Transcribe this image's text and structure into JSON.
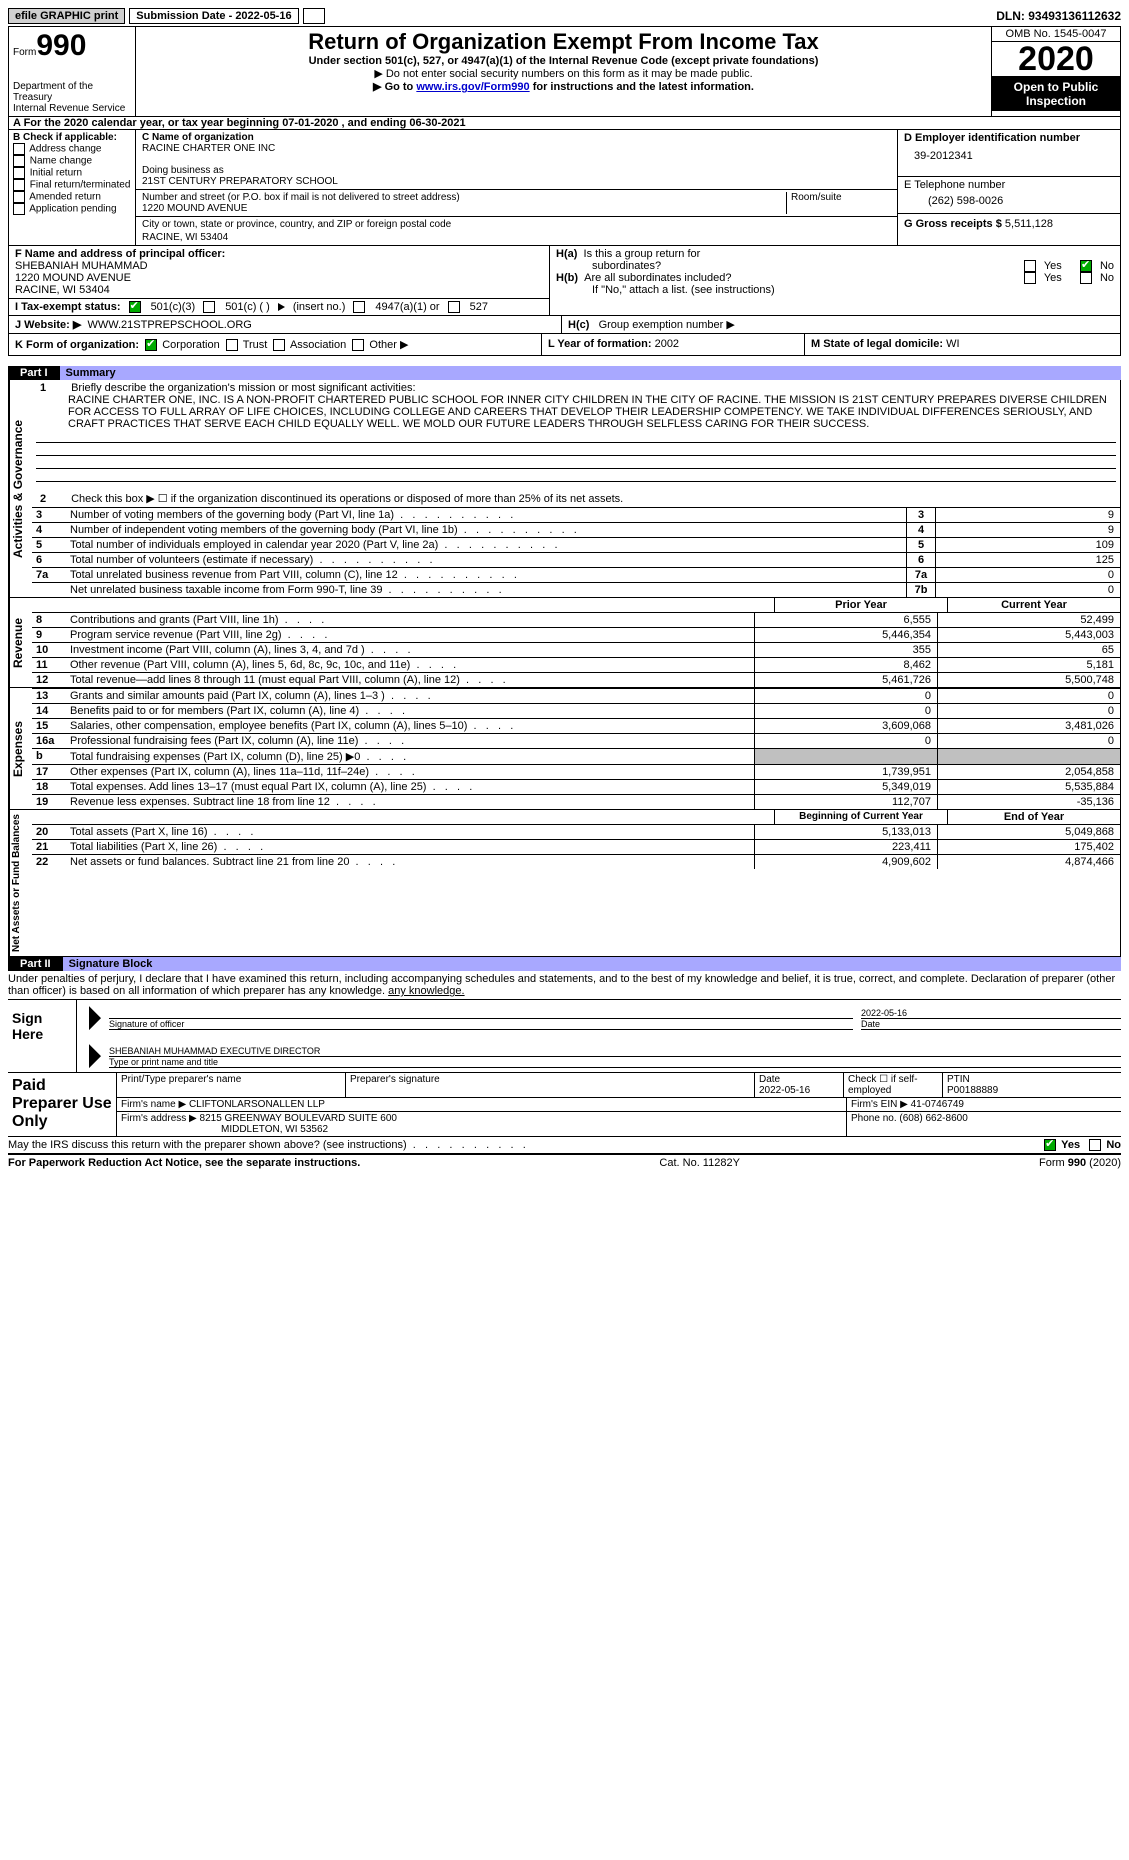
{
  "topbar": {
    "efile": "efile GRAPHIC print",
    "submission": "Submission Date - 2022-05-16",
    "dln": "DLN: 93493136112632"
  },
  "header": {
    "form_word": "Form",
    "form_num": "990",
    "dept": "Department of the Treasury\nInternal Revenue Service",
    "title": "Return of Organization Exempt From Income Tax",
    "sub1": "Under section 501(c), 527, or 4947(a)(1) of the Internal Revenue Code (except private foundations)",
    "sub2": "▶ Do not enter social security numbers on this form as it may be made public.",
    "sub3_pre": "▶ Go to ",
    "sub3_link": "www.irs.gov/Form990",
    "sub3_post": " for instructions and the latest information.",
    "omb": "OMB No. 1545-0047",
    "year": "2020",
    "open": "Open to Public Inspection"
  },
  "rowA": "A   For the 2020 calendar year, or tax year beginning 07-01-2020   , and ending 06-30-2021",
  "colB": {
    "title": "B Check if applicable:",
    "items": [
      "Address change",
      "Name change",
      "Initial return",
      "Final return/terminated",
      "Amended return",
      "Application pending"
    ]
  },
  "colC": {
    "c_label": "C Name of organization",
    "c_val": "RACINE CHARTER ONE INC",
    "dba_label": "Doing business as",
    "dba_val": "21ST CENTURY PREPARATORY SCHOOL",
    "addr_label": "Number and street (or P.O. box if mail is not delivered to street address)",
    "addr_val": "1220 MOUND AVENUE",
    "suite": "Room/suite",
    "city_label": "City or town, state or province, country, and ZIP or foreign postal code",
    "city_val": "RACINE, WI  53404"
  },
  "colD": {
    "d_label": "D Employer identification number",
    "d_val": "39-2012341",
    "e_label": "E Telephone number",
    "e_val": "(262) 598-0026",
    "g_label": "G Gross receipts $",
    "g_val": "5,511,128"
  },
  "f": {
    "label": "F Name and address of principal officer:",
    "name": "SHEBANIAH MUHAMMAD",
    "addr1": "1220 MOUND AVENUE",
    "addr2": "RACINE, WI  53404"
  },
  "i": {
    "label": "I   Tax-exempt status:",
    "a": "501(c)(3)",
    "b": "501(c) (  )",
    "b2": "(insert no.)",
    "c": "4947(a)(1) or",
    "d": "527"
  },
  "h": {
    "ha1": "H(a)",
    "ha_text": "Is this a group return for",
    "ha_text2": "subordinates?",
    "hb1": "H(b)",
    "hb_text": "Are all subordinates included?",
    "hb_note": "If \"No,\" attach a list. (see instructions)",
    "hc1": "H(c)",
    "hc_text": "Group exemption number ▶",
    "yes": "Yes",
    "no": "No"
  },
  "j": {
    "label": "J    Website: ▶",
    "val": "WWW.21STPREPSCHOOL.ORG"
  },
  "k": {
    "label": "K Form of organization:",
    "a": "Corporation",
    "b": "Trust",
    "c": "Association",
    "d": "Other ▶"
  },
  "l": {
    "label": "L Year of formation:",
    "val": "2002"
  },
  "m": {
    "label": "M State of legal domicile:",
    "val": "WI"
  },
  "part1": {
    "tab": "Part I",
    "title": "Summary"
  },
  "summary": {
    "l1_n": "1",
    "l1_t": "Briefly describe the organization's mission or most significant activities:",
    "mission": "RACINE CHARTER ONE, INC. IS A NON-PROFIT CHARTERED PUBLIC SCHOOL FOR INNER CITY CHILDREN IN THE CITY OF RACINE. THE MISSION IS 21ST CENTURY PREPARES DIVERSE CHILDREN FOR ACCESS TO FULL ARRAY OF LIFE CHOICES, INCLUDING COLLEGE AND CAREERS THAT DEVELOP THEIR LEADERSHIP COMPETENCY. WE TAKE INDIVIDUAL DIFFERENCES SERIOUSLY, AND CRAFT PRACTICES THAT SERVE EACH CHILD EQUALLY WELL. WE MOLD OUR FUTURE LEADERS THROUGH SELFLESS CARING FOR THEIR SUCCESS.",
    "l2_n": "2",
    "l2_t": "Check this box ▶ ☐  if the organization discontinued its operations or disposed of more than 25% of its net assets.",
    "rows": [
      {
        "n": "3",
        "t": "Number of voting members of the governing body (Part VI, line 1a)",
        "dots": 1,
        "box": "3",
        "v": "9"
      },
      {
        "n": "4",
        "t": "Number of independent voting members of the governing body (Part VI, line 1b)",
        "dots": 1,
        "box": "4",
        "v": "9"
      },
      {
        "n": "5",
        "t": "Total number of individuals employed in calendar year 2020 (Part V, line 2a)",
        "dots": 1,
        "box": "5",
        "v": "109"
      },
      {
        "n": "6",
        "t": "Total number of volunteers (estimate if necessary)",
        "dots": 1,
        "box": "6",
        "v": "125"
      },
      {
        "n": "7a",
        "t": "Total unrelated business revenue from Part VIII, column (C), line 12",
        "dots": 1,
        "box": "7a",
        "v": "0"
      },
      {
        "n": "",
        "t": "Net unrelated business taxable income from Form 990-T, line 39",
        "dots": 1,
        "box": "7b",
        "v": "0"
      }
    ]
  },
  "rev": {
    "label": "Revenue",
    "h1": "Prior Year",
    "h2": "Current Year",
    "rows": [
      {
        "n": "8",
        "t": "Contributions and grants (Part VIII, line 1h)",
        "v1": "6,555",
        "v2": "52,499"
      },
      {
        "n": "9",
        "t": "Program service revenue (Part VIII, line 2g)",
        "v1": "5,446,354",
        "v2": "5,443,003"
      },
      {
        "n": "10",
        "t": "Investment income (Part VIII, column (A), lines 3, 4, and 7d )",
        "v1": "355",
        "v2": "65"
      },
      {
        "n": "11",
        "t": "Other revenue (Part VIII, column (A), lines 5, 6d, 8c, 9c, 10c, and 11e)",
        "v1": "8,462",
        "v2": "5,181"
      },
      {
        "n": "12",
        "t": "Total revenue—add lines 8 through 11 (must equal Part VIII, column (A), line 12)",
        "v1": "5,461,726",
        "v2": "5,500,748"
      }
    ]
  },
  "exp": {
    "label": "Expenses",
    "rows": [
      {
        "n": "13",
        "t": "Grants and similar amounts paid (Part IX, column (A), lines 1–3 )",
        "v1": "0",
        "v2": "0"
      },
      {
        "n": "14",
        "t": "Benefits paid to or for members (Part IX, column (A), line 4)",
        "v1": "0",
        "v2": "0"
      },
      {
        "n": "15",
        "t": "Salaries, other compensation, employee benefits (Part IX, column (A), lines 5–10)",
        "v1": "3,609,068",
        "v2": "3,481,026"
      },
      {
        "n": "16a",
        "t": "Professional fundraising fees (Part IX, column (A), line 11e)",
        "v1": "0",
        "v2": "0"
      },
      {
        "n": "b",
        "t": "Total fundraising expenses (Part IX, column (D), line 25) ▶0",
        "v1": "",
        "v2": "",
        "gray": true
      },
      {
        "n": "17",
        "t": "Other expenses (Part IX, column (A), lines 11a–11d, 11f–24e)",
        "v1": "1,739,951",
        "v2": "2,054,858"
      },
      {
        "n": "18",
        "t": "Total expenses. Add lines 13–17 (must equal Part IX, column (A), line 25)",
        "v1": "5,349,019",
        "v2": "5,535,884"
      },
      {
        "n": "19",
        "t": "Revenue less expenses. Subtract line 18 from line 12",
        "v1": "112,707",
        "v2": "-35,136"
      }
    ]
  },
  "net": {
    "label": "Net Assets or Fund Balances",
    "h1": "Beginning of Current Year",
    "h2": "End of Year",
    "rows": [
      {
        "n": "20",
        "t": "Total assets (Part X, line 16)",
        "v1": "5,133,013",
        "v2": "5,049,868"
      },
      {
        "n": "21",
        "t": "Total liabilities (Part X, line 26)",
        "v1": "223,411",
        "v2": "175,402"
      },
      {
        "n": "22",
        "t": "Net assets or fund balances. Subtract line 21 from line 20",
        "v1": "4,909,602",
        "v2": "4,874,466"
      }
    ]
  },
  "part2": {
    "tab": "Part II",
    "title": "Signature Block"
  },
  "perjury": "Under penalties of perjury, I declare that I have examined this return, including accompanying schedules and statements, and to the best of my knowledge and belief, it is true, correct, and complete. Declaration of preparer (other than officer) is based on all information of which preparer has any knowledge.",
  "sign": {
    "here": "Sign Here",
    "sig_label": "Signature of officer",
    "date_val": "2022-05-16",
    "date_label": "Date",
    "name_val": "SHEBANIAH MUHAMMAD  EXECUTIVE DIRECTOR",
    "name_label": "Type or print name and title"
  },
  "prep": {
    "title": "Paid Preparer Use Only",
    "r1c1": "Print/Type preparer's name",
    "r1c2": "Preparer's signature",
    "r1c3l": "Date",
    "r1c3v": "2022-05-16",
    "r1c4": "Check ☐ if self-employed",
    "r1c5l": "PTIN",
    "r1c5v": "P00188889",
    "r2l": "Firm's name    ▶",
    "r2v": "CLIFTONLARSONALLEN LLP",
    "r2r": "Firm's EIN ▶ 41-0746749",
    "r3l": "Firm's address ▶",
    "r3v1": "8215 GREENWAY BOULEVARD SUITE 600",
    "r3v2": "MIDDLETON, WI  53562",
    "r3r": "Phone no. (608) 662-8600"
  },
  "discuss": {
    "text": "May the IRS discuss this return with the preparer shown above? (see instructions)",
    "yes": "Yes",
    "no": "No"
  },
  "footer": {
    "left": "For Paperwork Reduction Act Notice, see the separate instructions.",
    "mid": "Cat. No. 11282Y",
    "right": "Form 990 (2020)"
  }
}
